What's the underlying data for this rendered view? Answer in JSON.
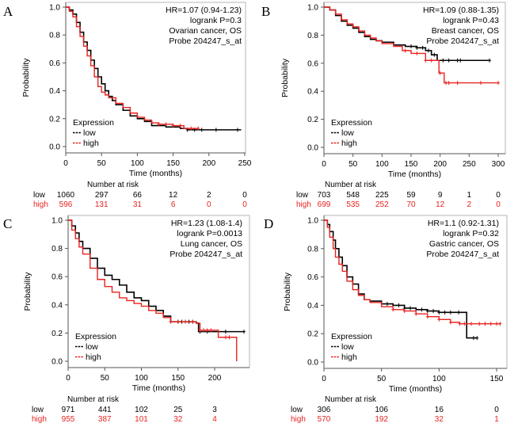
{
  "figure": {
    "colors": {
      "low": "#000000",
      "high": "#e8231f",
      "frame": "#8c8c8c"
    },
    "risk_title": "Number at risk",
    "legend_title": "Expression",
    "ylabel": "Probability"
  },
  "chart_data": [
    {
      "panel": "A",
      "type": "line",
      "subtype": "kaplan-meier",
      "xlabel": "Time (months)",
      "ylabel": "Probability",
      "xlim": [
        0,
        250
      ],
      "ylim": [
        0,
        1
      ],
      "xticks": [
        0,
        50,
        100,
        150,
        200,
        250
      ],
      "yticks": [
        "0.0",
        "0.2",
        "0.4",
        "0.6",
        "0.8",
        "1.0"
      ],
      "annotation": [
        "HR=1.07 (0.94-1.23)",
        "logrank P=0.3",
        "Ovarian cancer, OS",
        "Probe 204247_s_at"
      ],
      "legend": {
        "title": "Expression",
        "entries": [
          "low",
          "high"
        ],
        "placement": "bottom-left"
      },
      "series": [
        {
          "name": "low",
          "color": "#000000",
          "points": [
            [
              0,
              1.0
            ],
            [
              5,
              0.98
            ],
            [
              10,
              0.95
            ],
            [
              15,
              0.89
            ],
            [
              20,
              0.82
            ],
            [
              25,
              0.75
            ],
            [
              30,
              0.69
            ],
            [
              35,
              0.62
            ],
            [
              40,
              0.56
            ],
            [
              45,
              0.5
            ],
            [
              50,
              0.45
            ],
            [
              55,
              0.4
            ],
            [
              60,
              0.36
            ],
            [
              65,
              0.33
            ],
            [
              70,
              0.3
            ],
            [
              80,
              0.26
            ],
            [
              90,
              0.22
            ],
            [
              100,
              0.2
            ],
            [
              110,
              0.18
            ],
            [
              120,
              0.15
            ],
            [
              140,
              0.14
            ],
            [
              160,
              0.13
            ],
            [
              170,
              0.12
            ],
            [
              245,
              0.12
            ]
          ],
          "censor": [
            170,
            180,
            190,
            210,
            240
          ]
        },
        {
          "name": "high",
          "color": "#e8231f",
          "points": [
            [
              0,
              1.0
            ],
            [
              5,
              0.97
            ],
            [
              10,
              0.93
            ],
            [
              15,
              0.86
            ],
            [
              20,
              0.79
            ],
            [
              25,
              0.72
            ],
            [
              30,
              0.65
            ],
            [
              35,
              0.58
            ],
            [
              40,
              0.5
            ],
            [
              45,
              0.43
            ],
            [
              50,
              0.39
            ],
            [
              55,
              0.37
            ],
            [
              60,
              0.35
            ],
            [
              70,
              0.31
            ],
            [
              80,
              0.28
            ],
            [
              90,
              0.24
            ],
            [
              100,
              0.21
            ],
            [
              110,
              0.19
            ],
            [
              120,
              0.17
            ],
            [
              130,
              0.16
            ],
            [
              150,
              0.15
            ],
            [
              165,
              0.13
            ],
            [
              185,
              0.13
            ]
          ],
          "censor": [
            130,
            140,
            150,
            160,
            175,
            185
          ]
        }
      ],
      "risk_table": {
        "times": [
          0,
          50,
          100,
          150,
          200,
          250
        ],
        "low": [
          "1060",
          "297",
          "66",
          "12",
          "2",
          "0"
        ],
        "high": [
          "596",
          "131",
          "31",
          "6",
          "0",
          "0"
        ]
      }
    },
    {
      "panel": "B",
      "type": "line",
      "subtype": "kaplan-meier",
      "xlabel": "Time (months)",
      "ylabel": "Probability",
      "xlim": [
        0,
        300
      ],
      "ylim": [
        0,
        1
      ],
      "xticks": [
        0,
        50,
        100,
        150,
        200,
        250,
        300
      ],
      "yticks": [
        "0.0",
        "0.2",
        "0.4",
        "0.6",
        "0.8",
        "1.0"
      ],
      "annotation": [
        "HR=1.09 (0.88-1.35)",
        "logrank P=0.43",
        "Breast cancer, OS",
        "Probe 204247_s_at"
      ],
      "legend": {
        "title": "Expression",
        "entries": [
          "low",
          "high"
        ],
        "placement": "bottom-left"
      },
      "series": [
        {
          "name": "low",
          "color": "#000000",
          "points": [
            [
              0,
              1.0
            ],
            [
              10,
              0.98
            ],
            [
              20,
              0.94
            ],
            [
              30,
              0.9
            ],
            [
              40,
              0.87
            ],
            [
              50,
              0.85
            ],
            [
              60,
              0.82
            ],
            [
              70,
              0.79
            ],
            [
              80,
              0.77
            ],
            [
              90,
              0.76
            ],
            [
              100,
              0.75
            ],
            [
              120,
              0.73
            ],
            [
              140,
              0.72
            ],
            [
              160,
              0.71
            ],
            [
              175,
              0.69
            ],
            [
              185,
              0.66
            ],
            [
              195,
              0.62
            ],
            [
              285,
              0.62
            ]
          ],
          "censor": [
            150,
            160,
            170,
            180,
            190,
            205,
            215,
            230,
            235,
            285
          ]
        },
        {
          "name": "high",
          "color": "#e8231f",
          "points": [
            [
              0,
              1.0
            ],
            [
              10,
              0.98
            ],
            [
              20,
              0.95
            ],
            [
              30,
              0.91
            ],
            [
              40,
              0.88
            ],
            [
              50,
              0.86
            ],
            [
              60,
              0.83
            ],
            [
              70,
              0.8
            ],
            [
              80,
              0.78
            ],
            [
              90,
              0.76
            ],
            [
              100,
              0.74
            ],
            [
              120,
              0.72
            ],
            [
              135,
              0.69
            ],
            [
              150,
              0.67
            ],
            [
              170,
              0.67
            ],
            [
              175,
              0.62
            ],
            [
              195,
              0.62
            ],
            [
              198,
              0.53
            ],
            [
              205,
              0.53
            ],
            [
              207,
              0.46
            ],
            [
              300,
              0.46
            ]
          ],
          "censor": [
            140,
            160,
            175,
            185,
            200,
            210,
            215,
            230,
            270,
            300
          ]
        }
      ],
      "risk_table": {
        "times": [
          0,
          50,
          100,
          150,
          200,
          250,
          300
        ],
        "low": [
          "703",
          "548",
          "225",
          "59",
          "9",
          "1",
          "0"
        ],
        "high": [
          "699",
          "535",
          "252",
          "70",
          "12",
          "2",
          "0"
        ]
      }
    },
    {
      "panel": "C",
      "type": "line",
      "subtype": "kaplan-meier",
      "xlabel": "Time (months)",
      "ylabel": "Probability",
      "xlim": [
        0,
        240
      ],
      "ylim": [
        0,
        1
      ],
      "xticks": [
        0,
        50,
        100,
        150,
        200
      ],
      "yticks": [
        "0.0",
        "0.2",
        "0.4",
        "0.6",
        "0.8",
        "1.0"
      ],
      "annotation": [
        "HR=1.23 (1.08-1.4)",
        "logrank P=0.0013",
        "Lung cancer, OS",
        "Probe 204247_s_at"
      ],
      "legend": {
        "title": "Expression",
        "entries": [
          "low",
          "high"
        ],
        "placement": "bottom-left"
      },
      "series": [
        {
          "name": "low",
          "color": "#000000",
          "points": [
            [
              0,
              1.0
            ],
            [
              5,
              0.96
            ],
            [
              10,
              0.91
            ],
            [
              15,
              0.85
            ],
            [
              20,
              0.8
            ],
            [
              30,
              0.73
            ],
            [
              40,
              0.66
            ],
            [
              50,
              0.61
            ],
            [
              60,
              0.58
            ],
            [
              70,
              0.54
            ],
            [
              80,
              0.49
            ],
            [
              90,
              0.45
            ],
            [
              100,
              0.43
            ],
            [
              110,
              0.39
            ],
            [
              120,
              0.36
            ],
            [
              130,
              0.32
            ],
            [
              140,
              0.28
            ],
            [
              155,
              0.28
            ],
            [
              175,
              0.27
            ],
            [
              178,
              0.21
            ],
            [
              240,
              0.21
            ]
          ],
          "censor": [
            150,
            155,
            160,
            165,
            170,
            180,
            190,
            215,
            240
          ]
        },
        {
          "name": "high",
          "color": "#e8231f",
          "points": [
            [
              0,
              1.0
            ],
            [
              5,
              0.93
            ],
            [
              10,
              0.87
            ],
            [
              15,
              0.81
            ],
            [
              20,
              0.76
            ],
            [
              30,
              0.66
            ],
            [
              40,
              0.58
            ],
            [
              50,
              0.53
            ],
            [
              60,
              0.49
            ],
            [
              70,
              0.45
            ],
            [
              80,
              0.43
            ],
            [
              90,
              0.41
            ],
            [
              100,
              0.39
            ],
            [
              110,
              0.36
            ],
            [
              120,
              0.34
            ],
            [
              130,
              0.31
            ],
            [
              140,
              0.28
            ],
            [
              175,
              0.27
            ],
            [
              180,
              0.22
            ],
            [
              205,
              0.22
            ],
            [
              205,
              0.17
            ],
            [
              230,
              0.17
            ],
            [
              230,
              0.0
            ]
          ],
          "censor": [
            140,
            150,
            160,
            170,
            180,
            185,
            190,
            195,
            215,
            220
          ]
        }
      ],
      "risk_table": {
        "times": [
          0,
          50,
          100,
          150,
          200
        ],
        "low": [
          "971",
          "441",
          "102",
          "25",
          "3"
        ],
        "high": [
          "955",
          "387",
          "101",
          "32",
          "4"
        ]
      }
    },
    {
      "panel": "D",
      "type": "line",
      "subtype": "kaplan-meier",
      "xlabel": "Time (months)",
      "ylabel": "Probability",
      "xlim": [
        0,
        155
      ],
      "ylim": [
        0,
        1
      ],
      "xticks": [
        0,
        50,
        100,
        150
      ],
      "yticks": [
        "0.0",
        "0.2",
        "0.4",
        "0.6",
        "0.8",
        "1.0"
      ],
      "annotation": [
        "HR=1.1 (0.92-1.31)",
        "logrank P=0.32",
        "Gastric cancer, OS",
        "Probe 204247_s_at"
      ],
      "legend": {
        "title": "Expression",
        "entries": [
          "low",
          "high"
        ],
        "placement": "bottom-left"
      },
      "series": [
        {
          "name": "low",
          "color": "#000000",
          "points": [
            [
              0,
              1.0
            ],
            [
              3,
              0.97
            ],
            [
              5,
              0.92
            ],
            [
              8,
              0.86
            ],
            [
              10,
              0.8
            ],
            [
              13,
              0.74
            ],
            [
              16,
              0.68
            ],
            [
              20,
              0.6
            ],
            [
              25,
              0.55
            ],
            [
              30,
              0.48
            ],
            [
              35,
              0.44
            ],
            [
              40,
              0.43
            ],
            [
              50,
              0.41
            ],
            [
              60,
              0.4
            ],
            [
              70,
              0.38
            ],
            [
              80,
              0.37
            ],
            [
              90,
              0.36
            ],
            [
              100,
              0.35
            ],
            [
              124,
              0.35
            ],
            [
              124,
              0.17
            ],
            [
              133,
              0.17
            ]
          ],
          "censor": [
            55,
            65,
            70,
            75,
            85,
            90,
            95,
            100,
            105,
            110,
            117,
            130,
            133
          ]
        },
        {
          "name": "high",
          "color": "#e8231f",
          "points": [
            [
              0,
              1.0
            ],
            [
              3,
              0.95
            ],
            [
              5,
              0.88
            ],
            [
              8,
              0.8
            ],
            [
              10,
              0.74
            ],
            [
              13,
              0.69
            ],
            [
              16,
              0.64
            ],
            [
              20,
              0.57
            ],
            [
              25,
              0.51
            ],
            [
              30,
              0.47
            ],
            [
              35,
              0.44
            ],
            [
              40,
              0.42
            ],
            [
              50,
              0.39
            ],
            [
              60,
              0.37
            ],
            [
              70,
              0.36
            ],
            [
              80,
              0.34
            ],
            [
              90,
              0.32
            ],
            [
              100,
              0.3
            ],
            [
              110,
              0.28
            ],
            [
              118,
              0.27
            ],
            [
              153,
              0.27
            ]
          ],
          "censor": [
            60,
            70,
            80,
            90,
            100,
            110,
            118,
            122,
            128,
            135,
            140,
            145,
            150,
            153
          ]
        }
      ],
      "risk_table": {
        "times": [
          0,
          50,
          100,
          150
        ],
        "low": [
          "306",
          "106",
          "16",
          "0"
        ],
        "high": [
          "570",
          "192",
          "32",
          "1"
        ]
      }
    }
  ]
}
